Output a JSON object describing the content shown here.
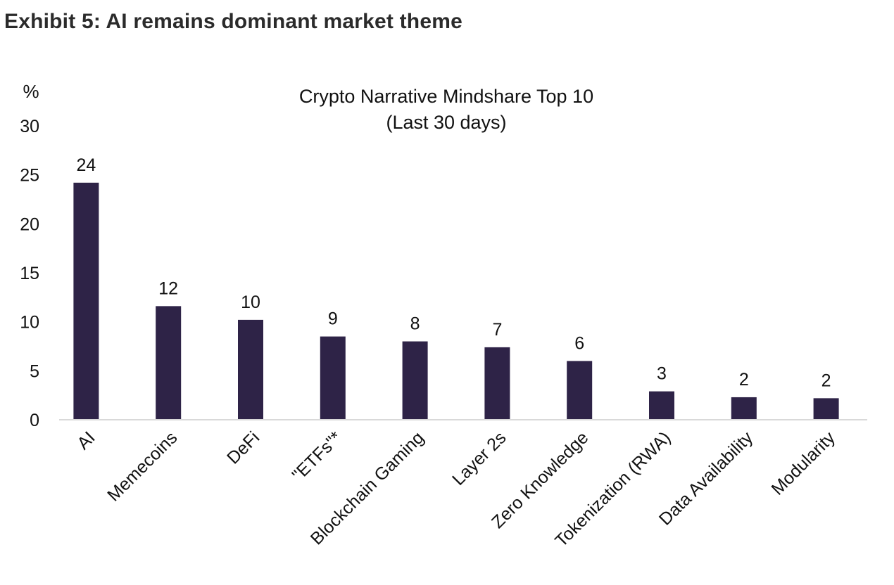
{
  "exhibit_title": "Exhibit 5: AI remains dominant market theme",
  "chart_data": {
    "type": "bar",
    "title": "Crypto Narrative Mindshare Top 10",
    "subtitle": "(Last 30 days)",
    "ylabel": "%",
    "xlabel": "",
    "ylim": [
      0,
      30
    ],
    "yticks": [
      0,
      5,
      10,
      15,
      20,
      25,
      30
    ],
    "categories": [
      "AI",
      "Memecoins",
      "DeFi",
      "\"ETFs\"*",
      "Blockchain Gaming",
      "Layer 2s",
      "Zero Knowledge",
      "Tokenization (RWA)",
      "Data Availability",
      "Modularity"
    ],
    "values": [
      24.2,
      11.6,
      10.2,
      8.5,
      8.0,
      7.4,
      6.0,
      2.9,
      2.3,
      2.2
    ],
    "data_labels": [
      "24",
      "12",
      "10",
      "9",
      "8",
      "7",
      "6",
      "3",
      "2",
      "2"
    ],
    "bar_color": "#2e2347",
    "axis_color": "#d9d9d9",
    "grid": false,
    "legend": "none"
  }
}
